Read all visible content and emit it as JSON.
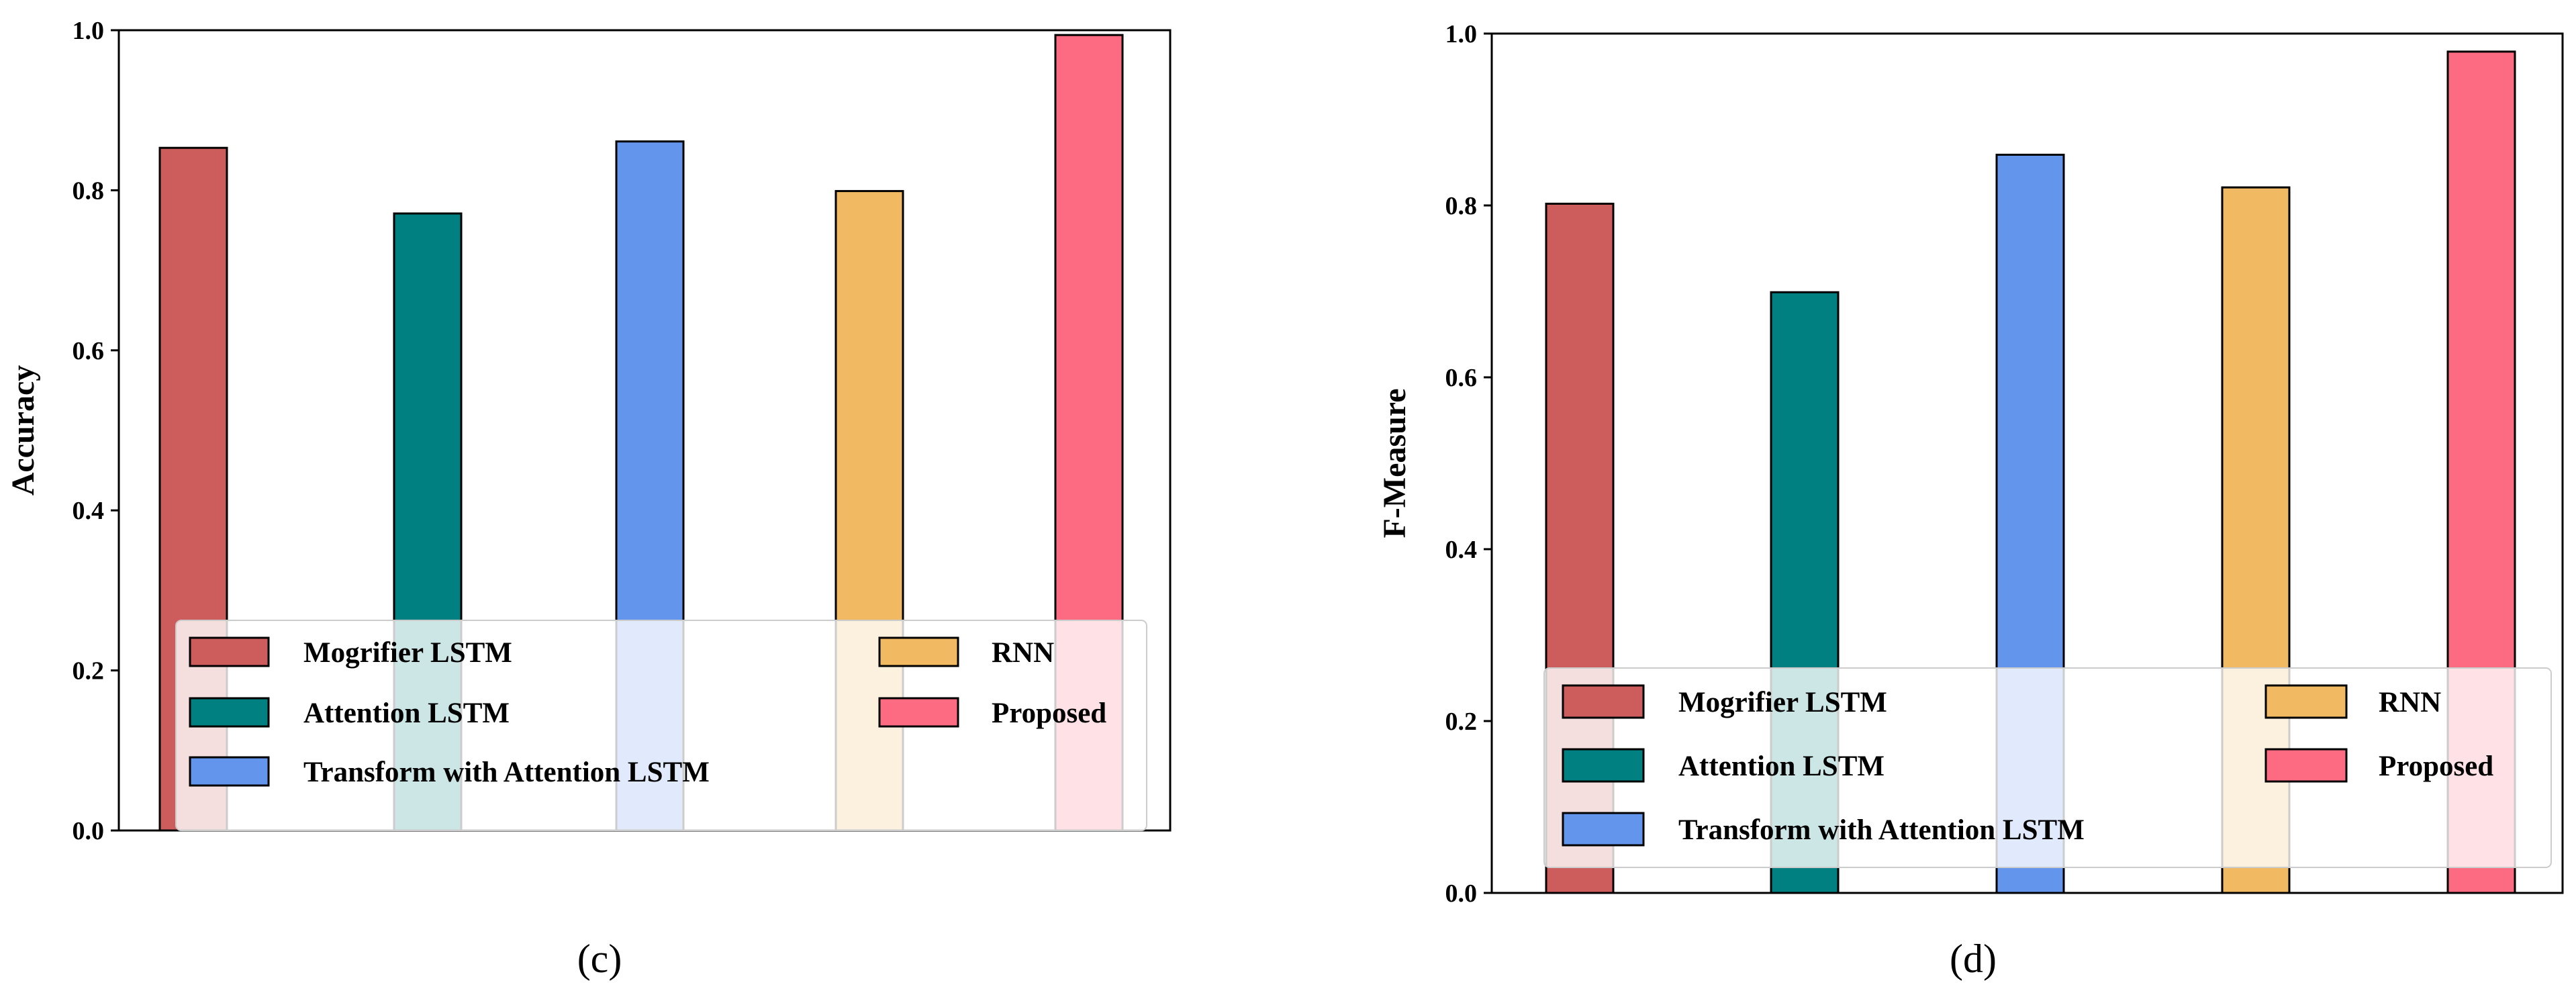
{
  "chart_data": [
    {
      "type": "bar",
      "panel_label": "(c)",
      "title": "",
      "xlabel": "",
      "ylabel": "Accuracy",
      "ylim": [
        0,
        1.0
      ],
      "yticks": [
        "0.0",
        "0.2",
        "0.4",
        "0.6",
        "0.8",
        "1.0"
      ],
      "grid": false,
      "legend_location": "lower-center",
      "series": [
        {
          "name": "Mogrifier LSTM",
          "value": 0.853,
          "color": "#cd5c5c"
        },
        {
          "name": "Attention LSTM",
          "value": 0.771,
          "color": "#008080"
        },
        {
          "name": "Transform with Attention LSTM",
          "value": 0.861,
          "color": "#6495ed"
        },
        {
          "name": "RNN",
          "value": 0.799,
          "color": "#f0b962"
        },
        {
          "name": "Proposed",
          "value": 0.994,
          "color": "#fd6b82"
        }
      ]
    },
    {
      "type": "bar",
      "panel_label": "(d)",
      "title": "",
      "xlabel": "",
      "ylabel": "F-Measure",
      "ylim": [
        0,
        1.0
      ],
      "yticks": [
        "0.0",
        "0.2",
        "0.4",
        "0.6",
        "0.8",
        "1.0"
      ],
      "grid": false,
      "legend_location": "lower-center",
      "series": [
        {
          "name": "Mogrifier LSTM",
          "value": 0.802,
          "color": "#cd5c5c"
        },
        {
          "name": "Attention LSTM",
          "value": 0.699,
          "color": "#008080"
        },
        {
          "name": "Transform with Attention LSTM",
          "value": 0.859,
          "color": "#6495ed"
        },
        {
          "name": "RNN",
          "value": 0.821,
          "color": "#f0b962"
        },
        {
          "name": "Proposed",
          "value": 0.979,
          "color": "#fd6b82"
        }
      ]
    }
  ]
}
